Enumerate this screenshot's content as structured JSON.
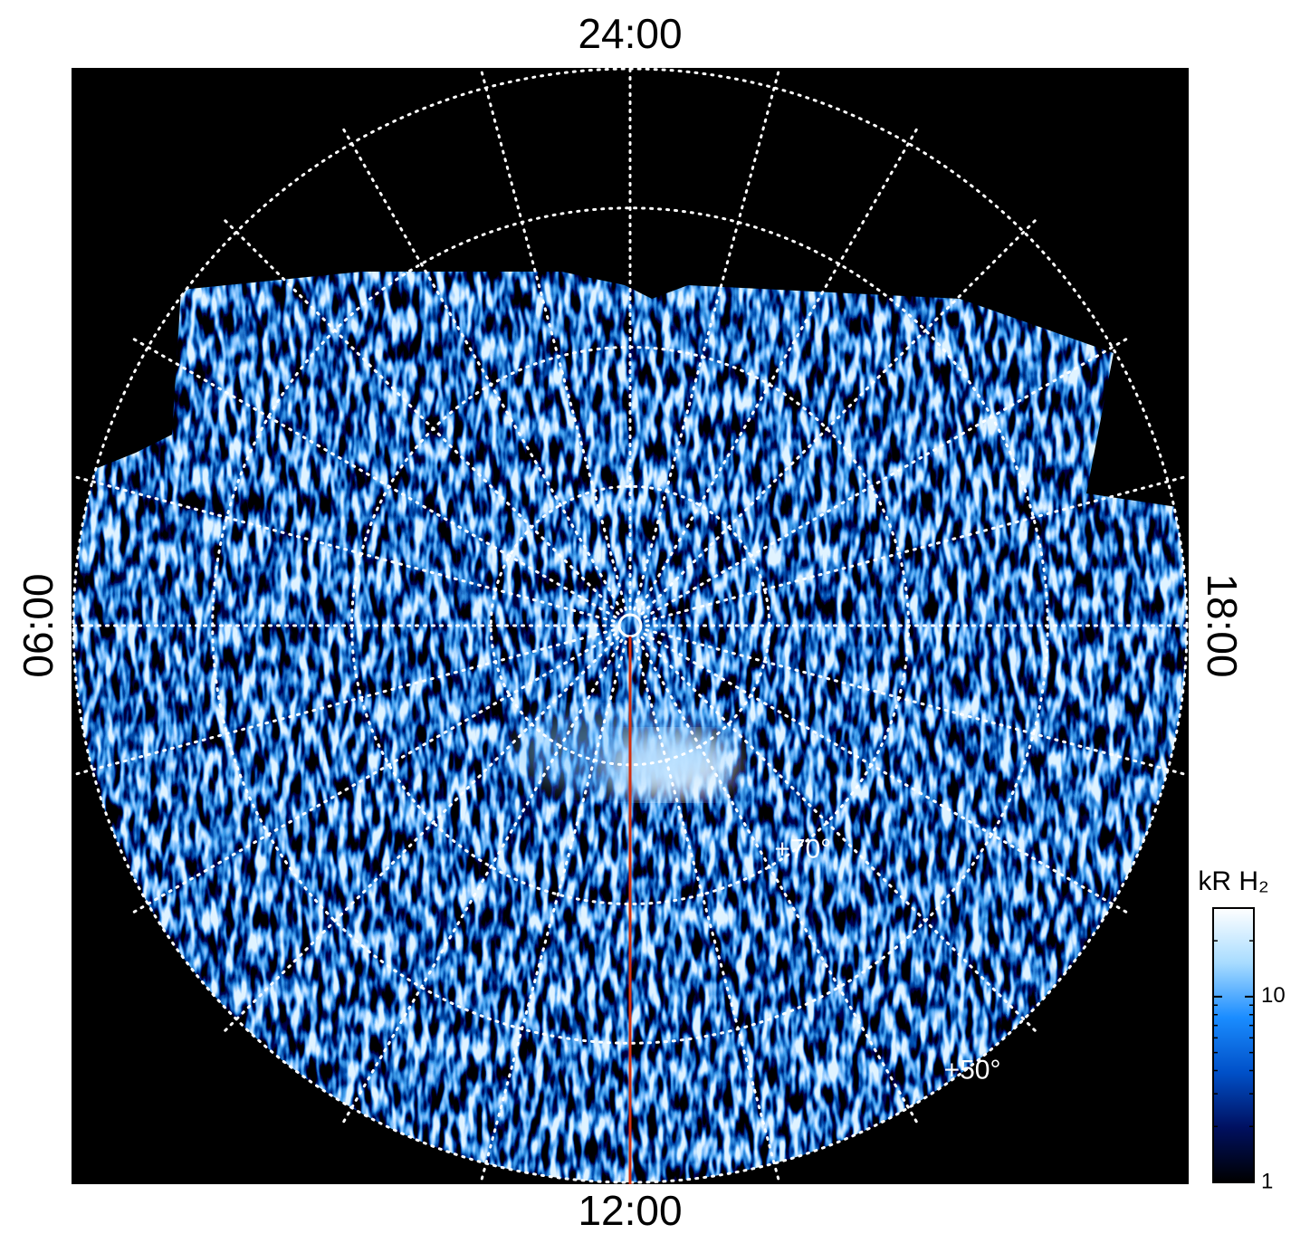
{
  "chart_data": {
    "type": "polar-image",
    "lt_labels": [
      {
        "value": 24,
        "label": "24:00"
      },
      {
        "value": 6,
        "label": "06:00"
      },
      {
        "value": 18,
        "label": "18:00"
      },
      {
        "value": 12,
        "label": "12:00"
      }
    ],
    "rlim": [
      90,
      50
    ],
    "lat_circles": [
      50,
      60,
      70,
      80
    ],
    "lat_labels": [
      {
        "value": 70,
        "label": "+70°"
      },
      {
        "value": 50,
        "label": "+50°"
      }
    ],
    "grid": true,
    "meridian_color": "#d03010",
    "colorbar": {
      "label": "kR H₂",
      "lim": [
        1,
        30
      ],
      "ticks": [
        1,
        10
      ],
      "log": true,
      "colors": [
        "#000000",
        "#001060",
        "#0050c8",
        "#1a8cff",
        "#a8dcff",
        "#ffffff"
      ]
    }
  }
}
